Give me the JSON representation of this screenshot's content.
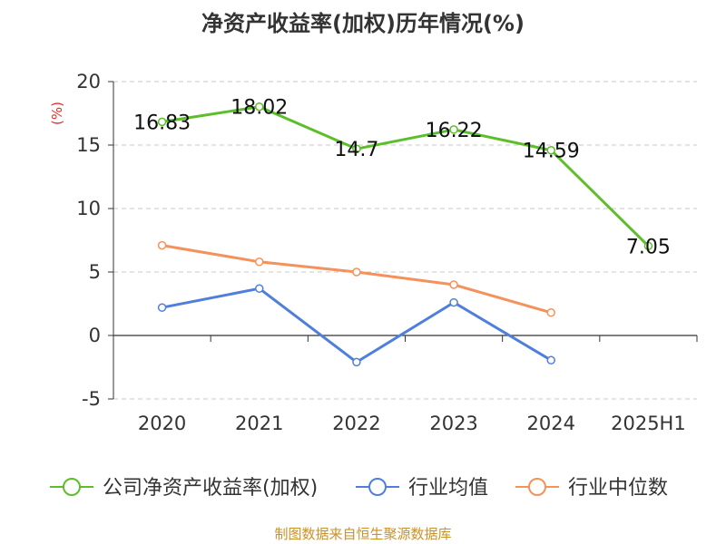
{
  "chart_data": {
    "type": "line",
    "title": "净资产收益率(加权)历年情况(%)",
    "ylabel": "(%)",
    "xlabel": "",
    "categories": [
      "2020",
      "2021",
      "2022",
      "2023",
      "2024",
      "2025H1"
    ],
    "ylim": [
      -5,
      20
    ],
    "yticks": [
      20,
      15,
      10,
      5,
      0,
      -5
    ],
    "grid": true,
    "legend_position": "bottom",
    "series": [
      {
        "name": "公司净资产收益率(加权)",
        "color": "#5cbf2a",
        "values": [
          16.83,
          18.02,
          14.7,
          16.22,
          14.59,
          7.05
        ],
        "labels": [
          "16.83",
          "18.02",
          "14.7",
          "16.22",
          "14.59",
          "7.05"
        ]
      },
      {
        "name": "行业均值",
        "color": "#4f7fdc",
        "values": [
          2.2,
          3.7,
          -2.1,
          2.6,
          -1.95,
          null
        ]
      },
      {
        "name": "行业中位数",
        "color": "#f5915b",
        "values": [
          7.1,
          5.8,
          5.0,
          4.0,
          1.8,
          null
        ]
      }
    ]
  },
  "source": "制图数据来自恒生聚源数据库"
}
